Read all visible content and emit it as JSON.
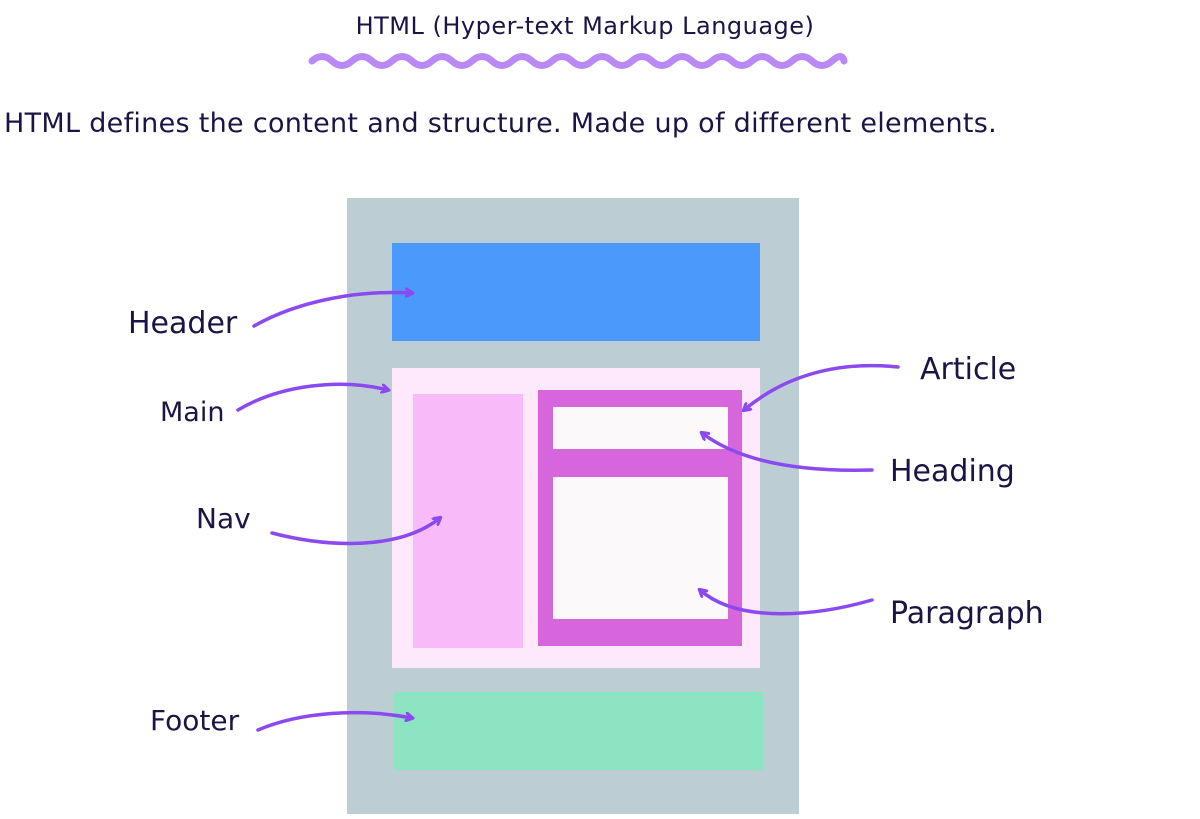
{
  "title": "HTML (Hyper-text Markup Language)",
  "subtitle": "HTML defines the content and structure. Made up of different elements.",
  "labels": {
    "header": "Header",
    "main": "Main",
    "nav": "Nav",
    "footer": "Footer",
    "article": "Article",
    "heading": "Heading",
    "paragraph": "Paragraph"
  },
  "colors": {
    "page": "#bccdd4",
    "header": "#4b9afb",
    "main": "#fde8fc",
    "nav": "#f9bafa",
    "article": "#d766dd",
    "heading": "#fbf9fa",
    "paragraph": "#fbf9fa",
    "footer": "#8de4c2",
    "arrow": "#8b4af0",
    "underline": "#b98af7",
    "text": "#1c1445"
  }
}
